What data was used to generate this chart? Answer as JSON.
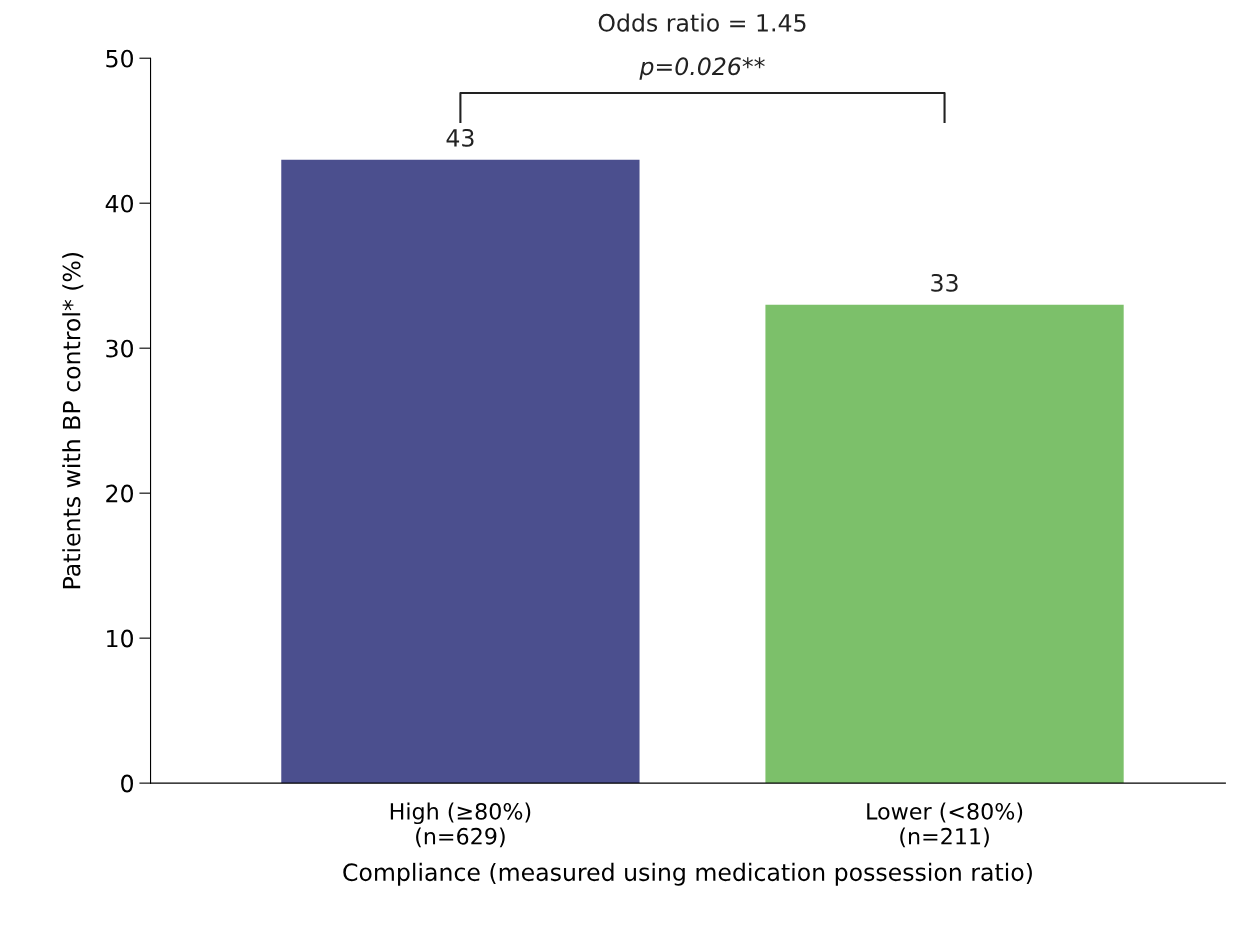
{
  "chart_data": {
    "type": "bar",
    "categories": [
      "High (≥80%)\n(n=629)",
      "Lower (<80%)\n(n=211)"
    ],
    "values": [
      43,
      33
    ],
    "colors": [
      "#4b4f8e",
      "#7cc06a"
    ],
    "xlabel": "Compliance (measured using medication possession ratio)",
    "ylabel": "Patients with BP control* (%)",
    "ylim": [
      0,
      50
    ],
    "yticks": [
      0,
      10,
      20,
      30,
      40,
      50
    ],
    "data_labels": true,
    "grid": false,
    "legend": false,
    "annotations": [
      "Odds ratio = 1.45",
      "p=0.026**"
    ]
  }
}
